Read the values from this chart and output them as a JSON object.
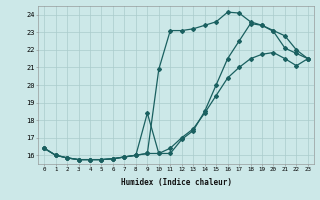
{
  "xlabel": "Humidex (Indice chaleur)",
  "bg_color": "#cce8e8",
  "grid_color": "#aacccc",
  "line_color": "#1a6060",
  "xlim": [
    -0.5,
    23.5
  ],
  "ylim": [
    15.5,
    24.5
  ],
  "xtick_labels": [
    "0",
    "1",
    "2",
    "3",
    "4",
    "5",
    "6",
    "7",
    "8",
    "9",
    "10",
    "11",
    "12",
    "13",
    "14",
    "15",
    "16",
    "17",
    "18",
    "19",
    "20",
    "21",
    "22",
    "23"
  ],
  "ytick_labels": [
    "16",
    "17",
    "18",
    "19",
    "20",
    "21",
    "22",
    "23",
    "24"
  ],
  "curve1_x": [
    0,
    1,
    2,
    3,
    4,
    5,
    6,
    7,
    8,
    9,
    10,
    11,
    12,
    13,
    14,
    15,
    16,
    17,
    18,
    19,
    20,
    21,
    22,
    23
  ],
  "curve1_y": [
    16.4,
    16.0,
    15.85,
    15.75,
    15.75,
    15.75,
    15.8,
    15.9,
    16.0,
    16.1,
    20.9,
    23.1,
    23.1,
    23.2,
    23.4,
    23.6,
    24.15,
    24.1,
    23.6,
    23.4,
    23.1,
    22.8,
    22.0,
    21.5
  ],
  "curve2_x": [
    0,
    1,
    2,
    3,
    4,
    5,
    6,
    7,
    8,
    9,
    10,
    11,
    12,
    13,
    14,
    15,
    16,
    17,
    18,
    19,
    20,
    21,
    22,
    23
  ],
  "curve2_y": [
    16.4,
    16.0,
    15.85,
    15.75,
    15.75,
    15.75,
    15.8,
    15.9,
    16.0,
    18.4,
    16.1,
    16.1,
    16.9,
    17.4,
    18.5,
    20.0,
    21.5,
    22.5,
    23.5,
    23.4,
    23.05,
    22.1,
    21.8,
    21.5
  ],
  "curve3_x": [
    0,
    1,
    2,
    3,
    4,
    5,
    6,
    7,
    8,
    9,
    10,
    11,
    12,
    13,
    14,
    15,
    16,
    17,
    18,
    19,
    20,
    21,
    22,
    23
  ],
  "curve3_y": [
    16.4,
    16.0,
    15.85,
    15.75,
    15.75,
    15.75,
    15.8,
    15.9,
    16.0,
    16.1,
    16.1,
    16.4,
    17.0,
    17.5,
    18.4,
    19.4,
    20.4,
    21.0,
    21.5,
    21.75,
    21.85,
    21.5,
    21.1,
    21.5
  ]
}
